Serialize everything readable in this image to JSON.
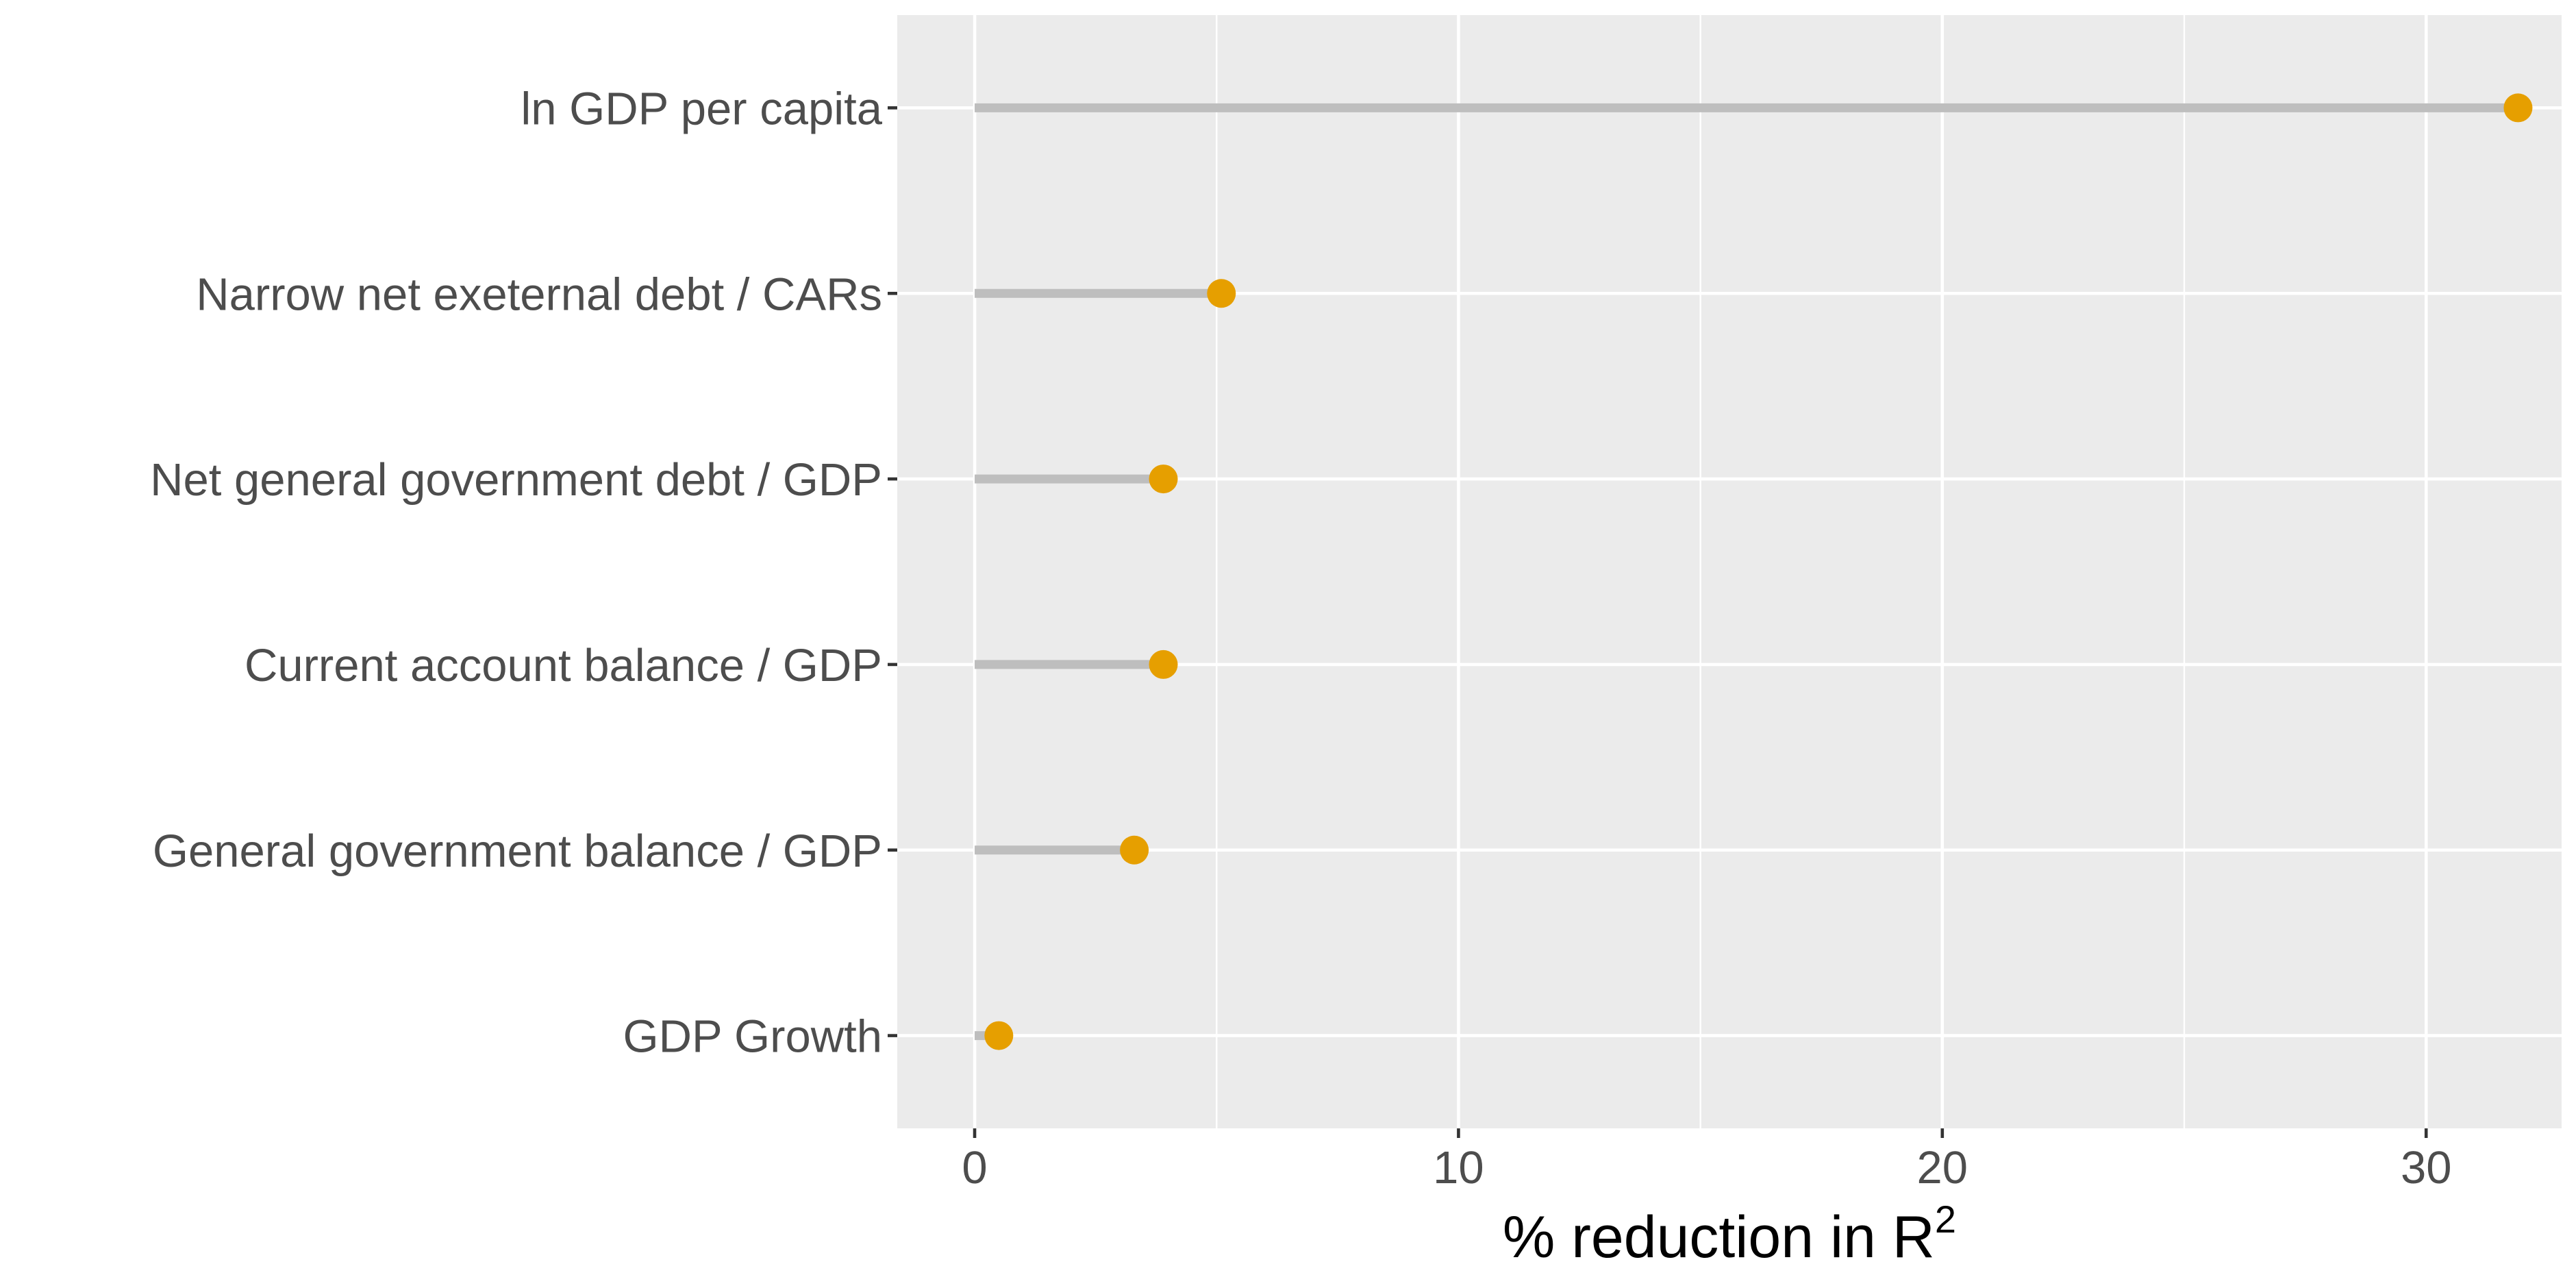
{
  "colors": {
    "panel_bg": "#ebebeb",
    "grid": "#ffffff",
    "stem": "#bebebe",
    "point": "#e69f00",
    "text": "#4d4d4d",
    "tick": "#333333"
  },
  "chart_data": {
    "type": "lollipop",
    "orientation": "horizontal",
    "categories": [
      "ln GDP per capita",
      "Narrow net exeternal debt / CARs",
      "Net general government debt / GDP",
      "Current account balance / GDP",
      "General government balance / GDP",
      "GDP Growth"
    ],
    "values": [
      31.9,
      5.1,
      3.9,
      3.9,
      3.3,
      0.5
    ],
    "xlabel": {
      "base": "% reduction in R",
      "superscript": "2"
    },
    "xlim": [
      -1.6,
      32.8
    ],
    "x_ticks": [
      0,
      10,
      20,
      30
    ],
    "x_tick_labels": [
      "0",
      "10",
      "20",
      "30"
    ],
    "grid": true,
    "legend": "none"
  }
}
